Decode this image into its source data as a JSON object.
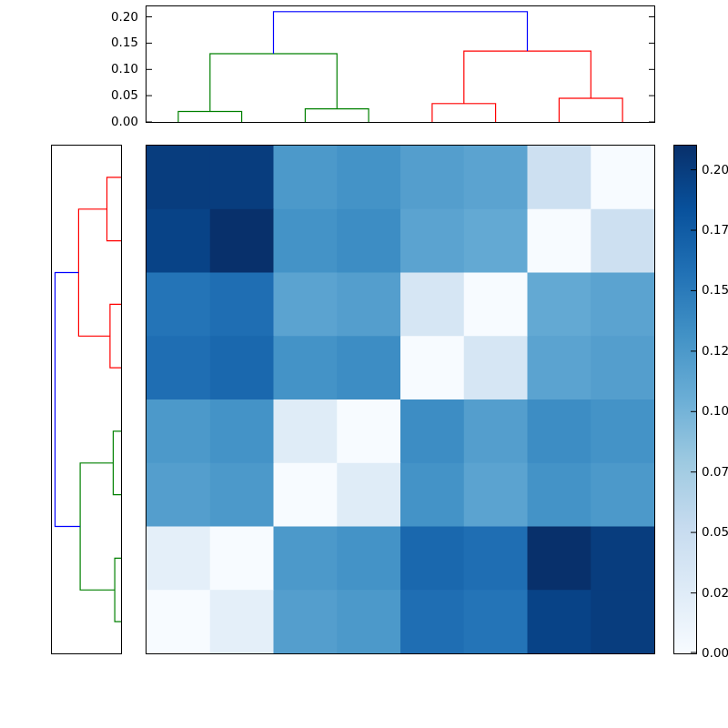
{
  "figure": {
    "background": "#ffffff",
    "kind": "clustered distance-matrix heatmap with row and column dendrograms and colorbar"
  },
  "chart_data": {
    "type": "heatmap",
    "title": "",
    "heatmap": {
      "n_rows": 8,
      "n_cols": 8,
      "vmin": 0.0,
      "vmax": 0.21,
      "colormap_name": "Blues",
      "colormap_stops": [
        [
          0.0,
          "#f7fbff"
        ],
        [
          0.125,
          "#deebf7"
        ],
        [
          0.25,
          "#c6dbef"
        ],
        [
          0.375,
          "#9ecae1"
        ],
        [
          0.5,
          "#6baed6"
        ],
        [
          0.625,
          "#4292c6"
        ],
        [
          0.75,
          "#2171b5"
        ],
        [
          0.875,
          "#08519c"
        ],
        [
          1.0,
          "#08306b"
        ]
      ],
      "values": [
        [
          0.2,
          0.2,
          0.125,
          0.13,
          0.12,
          0.115,
          0.045,
          0.0
        ],
        [
          0.195,
          0.21,
          0.13,
          0.135,
          0.115,
          0.11,
          0.0,
          0.045
        ],
        [
          0.155,
          0.16,
          0.115,
          0.12,
          0.035,
          0.0,
          0.11,
          0.115
        ],
        [
          0.16,
          0.165,
          0.13,
          0.135,
          0.0,
          0.035,
          0.115,
          0.12
        ],
        [
          0.125,
          0.13,
          0.025,
          0.0,
          0.135,
          0.12,
          0.135,
          0.13
        ],
        [
          0.12,
          0.125,
          0.0,
          0.025,
          0.13,
          0.115,
          0.13,
          0.125
        ],
        [
          0.02,
          0.0,
          0.125,
          0.13,
          0.165,
          0.16,
          0.21,
          0.2
        ],
        [
          0.0,
          0.02,
          0.12,
          0.125,
          0.16,
          0.155,
          0.195,
          0.2
        ]
      ]
    },
    "top_dendrogram": {
      "orientation": "top",
      "axis_range": [
        0.0,
        0.22
      ],
      "tick_values": [
        0.0,
        0.05,
        0.1,
        0.15,
        0.2
      ],
      "tick_labels": [
        "0.00",
        "0.05",
        "0.10",
        "0.15",
        "0.20"
      ],
      "colors": {
        "cluster1": "#008000",
        "cluster2": "#ff0000",
        "root": "#0000ff"
      },
      "links": [
        {
          "x1": 0.5,
          "h1": 0.0,
          "x2": 1.5,
          "h2": 0.0,
          "height": 0.02,
          "color": "#008000"
        },
        {
          "x1": 2.5,
          "h1": 0.0,
          "x2": 3.5,
          "h2": 0.0,
          "height": 0.025,
          "color": "#008000"
        },
        {
          "x1": 1.0,
          "h1": 0.02,
          "x2": 3.0,
          "h2": 0.025,
          "height": 0.13,
          "color": "#008000"
        },
        {
          "x1": 4.5,
          "h1": 0.0,
          "x2": 5.5,
          "h2": 0.0,
          "height": 0.035,
          "color": "#ff0000"
        },
        {
          "x1": 6.5,
          "h1": 0.0,
          "x2": 7.5,
          "h2": 0.0,
          "height": 0.045,
          "color": "#ff0000"
        },
        {
          "x1": 5.0,
          "h1": 0.035,
          "x2": 7.0,
          "h2": 0.045,
          "height": 0.135,
          "color": "#ff0000"
        },
        {
          "x1": 2.0,
          "h1": 0.13,
          "x2": 6.0,
          "h2": 0.135,
          "height": 0.21,
          "color": "#0000ff"
        }
      ]
    },
    "left_dendrogram": {
      "orientation": "left",
      "axis_range": [
        0.0,
        0.22
      ],
      "colors": {
        "cluster1": "#ff0000",
        "cluster2": "#008000",
        "root": "#0000ff"
      },
      "links": [
        {
          "x1": 0.5,
          "h1": 0.0,
          "x2": 1.5,
          "h2": 0.0,
          "height": 0.045,
          "color": "#ff0000"
        },
        {
          "x1": 2.5,
          "h1": 0.0,
          "x2": 3.5,
          "h2": 0.0,
          "height": 0.035,
          "color": "#ff0000"
        },
        {
          "x1": 1.0,
          "h1": 0.045,
          "x2": 3.0,
          "h2": 0.035,
          "height": 0.135,
          "color": "#ff0000"
        },
        {
          "x1": 4.5,
          "h1": 0.0,
          "x2": 5.5,
          "h2": 0.0,
          "height": 0.025,
          "color": "#008000"
        },
        {
          "x1": 6.5,
          "h1": 0.0,
          "x2": 7.5,
          "h2": 0.0,
          "height": 0.02,
          "color": "#008000"
        },
        {
          "x1": 5.0,
          "h1": 0.025,
          "x2": 7.0,
          "h2": 0.02,
          "height": 0.13,
          "color": "#008000"
        },
        {
          "x1": 2.0,
          "h1": 0.135,
          "x2": 6.0,
          "h2": 0.13,
          "height": 0.21,
          "color": "#0000ff"
        }
      ]
    },
    "colorbar": {
      "vmin": 0.0,
      "vmax": 0.21,
      "tick_values": [
        0.2,
        0.175,
        0.15,
        0.125,
        0.1,
        0.075,
        0.05,
        0.025,
        0.0
      ],
      "tick_labels": [
        "0.20",
        "0.17",
        "0.15",
        "0.12",
        "0.10",
        "0.07",
        "0.05",
        "0.02",
        "0.00"
      ]
    }
  }
}
